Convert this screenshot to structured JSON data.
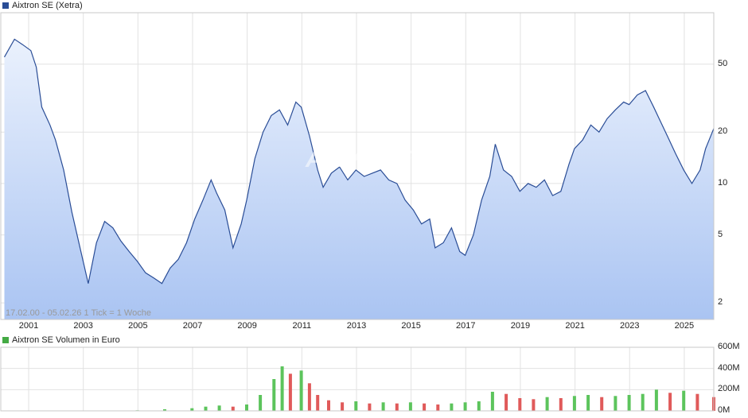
{
  "chart_data": [
    {
      "type": "line",
      "legend": "Aixtron SE (Xetra)",
      "color": "#2a4d96",
      "fill_top": "#eaf1fd",
      "fill_bottom": "#aac4f2",
      "ylim": [
        1.6,
        100
      ],
      "yscale": "log",
      "y_ticks": [
        "50",
        "20",
        "10",
        "5",
        "2"
      ],
      "x_ticks": [
        "2001",
        "2003",
        "2005",
        "2007",
        "2009",
        "2011",
        "2013",
        "2015",
        "2017",
        "2019",
        "2021",
        "2023",
        "2025"
      ],
      "info": "17.02.00 - 05.02.26    1 Tick = 1 Woche",
      "x": [
        2000.13,
        2000.5,
        2000.8,
        2001.1,
        2001.3,
        2001.5,
        2001.8,
        2002.0,
        2002.3,
        2002.6,
        2002.9,
        2003.2,
        2003.5,
        2003.8,
        2004.1,
        2004.4,
        2004.7,
        2005.0,
        2005.3,
        2005.6,
        2005.9,
        2006.2,
        2006.5,
        2006.8,
        2007.1,
        2007.4,
        2007.7,
        2007.9,
        2008.2,
        2008.5,
        2008.8,
        2009.0,
        2009.3,
        2009.6,
        2009.9,
        2010.2,
        2010.5,
        2010.8,
        2011.0,
        2011.3,
        2011.6,
        2011.8,
        2012.1,
        2012.4,
        2012.7,
        2013.0,
        2013.3,
        2013.6,
        2013.9,
        2014.2,
        2014.5,
        2014.8,
        2015.1,
        2015.4,
        2015.7,
        2015.9,
        2016.2,
        2016.5,
        2016.8,
        2017.0,
        2017.3,
        2017.6,
        2017.9,
        2018.1,
        2018.4,
        2018.7,
        2019.0,
        2019.3,
        2019.6,
        2019.9,
        2020.2,
        2020.5,
        2020.8,
        2021.0,
        2021.3,
        2021.6,
        2021.9,
        2022.2,
        2022.5,
        2022.8,
        2023.0,
        2023.3,
        2023.6,
        2023.9,
        2024.1,
        2024.4,
        2024.7,
        2025.0,
        2025.3,
        2025.6,
        2025.8,
        2026.1
      ],
      "values": [
        55,
        70,
        65,
        60,
        48,
        28,
        22,
        18,
        12,
        6.8,
        4.2,
        2.6,
        4.5,
        6.0,
        5.5,
        4.6,
        4.0,
        3.5,
        3.0,
        2.8,
        2.6,
        3.2,
        3.6,
        4.5,
        6.2,
        8.0,
        10.5,
        8.8,
        7.0,
        4.2,
        5.8,
        8.0,
        14.0,
        20.0,
        25.0,
        27.0,
        22.0,
        30.0,
        28.0,
        19.0,
        12.0,
        9.5,
        11.5,
        12.5,
        10.5,
        12.0,
        11.0,
        11.5,
        12.0,
        10.5,
        10.0,
        8.0,
        7.0,
        5.8,
        6.2,
        4.2,
        4.5,
        5.5,
        4.0,
        3.8,
        5.0,
        8.0,
        11.0,
        17.0,
        12.0,
        11.0,
        9.0,
        10.0,
        9.5,
        10.5,
        8.5,
        9.0,
        13.0,
        16.0,
        18.0,
        22.0,
        20.0,
        24.0,
        27.0,
        30.0,
        29.0,
        33.0,
        35.0,
        28.0,
        24.0,
        19.0,
        15.0,
        12.0,
        10.0,
        12.0,
        16.0,
        21.0
      ]
    },
    {
      "type": "bar",
      "legend": "Aixtron SE Volumen in Euro",
      "legend_color": "#44aa44",
      "up_color": "#5cc45c",
      "down_color": "#e05a5a",
      "ylim": [
        0,
        600
      ],
      "y_ticks": [
        "600M",
        "400M",
        "200M",
        "0M"
      ],
      "x": [
        2000.13,
        2001.0,
        2002.0,
        2003.0,
        2004.0,
        2005.0,
        2006.0,
        2007.0,
        2007.5,
        2008.0,
        2008.5,
        2009.0,
        2009.5,
        2010.0,
        2010.3,
        2010.6,
        2011.0,
        2011.3,
        2011.6,
        2012.0,
        2012.5,
        2013.0,
        2013.5,
        2014.0,
        2014.5,
        2015.0,
        2015.5,
        2016.0,
        2016.5,
        2017.0,
        2017.5,
        2018.0,
        2018.5,
        2019.0,
        2019.5,
        2020.0,
        2020.5,
        2021.0,
        2021.5,
        2022.0,
        2022.5,
        2023.0,
        2023.5,
        2024.0,
        2024.5,
        2025.0,
        2025.5,
        2026.1
      ],
      "values": [
        2,
        2,
        2,
        3,
        4,
        5,
        15,
        25,
        40,
        50,
        40,
        60,
        150,
        300,
        420,
        350,
        380,
        260,
        150,
        100,
        80,
        90,
        70,
        80,
        70,
        80,
        70,
        60,
        70,
        80,
        90,
        180,
        160,
        120,
        110,
        130,
        120,
        140,
        150,
        130,
        140,
        150,
        160,
        200,
        170,
        190,
        160,
        130
      ]
    }
  ]
}
